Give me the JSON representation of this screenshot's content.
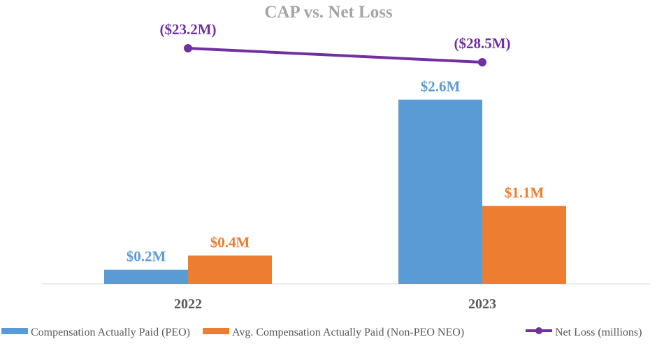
{
  "chart_data": {
    "type": "bar",
    "title": "CAP vs. Net Loss",
    "categories": [
      "2022",
      "2023"
    ],
    "grid": false,
    "legend_position": "bottom",
    "series": [
      {
        "name": "Compensation Actually Paid (PEO)",
        "kind": "bar",
        "color": "#5B9BD5",
        "values": [
          0.2,
          2.6
        ],
        "labels": [
          "$0.2M",
          "$2.6M"
        ]
      },
      {
        "name": "Avg. Compensation Actually Paid (Non-PEO NEO)",
        "kind": "bar",
        "color": "#ED7D31",
        "values": [
          0.4,
          1.1
        ],
        "labels": [
          "$0.4M",
          "$1.1M"
        ]
      },
      {
        "name": "Net Loss (millions)",
        "kind": "line",
        "axis": "secondary",
        "color": "#7030A0",
        "values": [
          -23.2,
          -28.5
        ],
        "labels": [
          "($23.2M)",
          "($28.5M)"
        ]
      }
    ]
  }
}
